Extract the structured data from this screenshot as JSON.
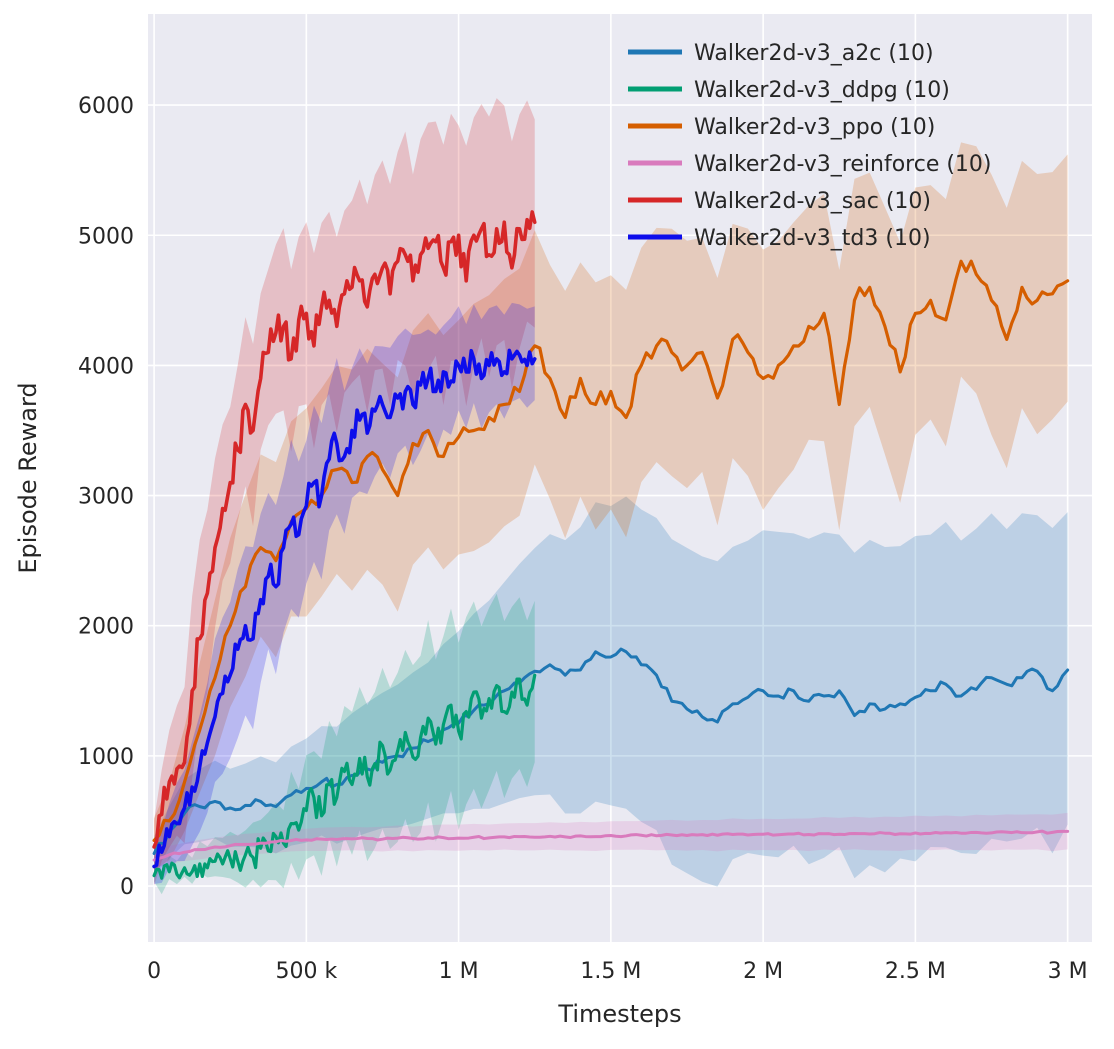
{
  "figure": {
    "type": "seaborn-line-figure",
    "background": "#ffffff"
  },
  "chart_data": {
    "type": "line",
    "title": "",
    "xlabel": "Timesteps",
    "ylabel": "Episode Reward",
    "grid": true,
    "legend_position": "upper right",
    "plot_background": "#eaeaf2",
    "grid_color": "#ffffff",
    "xlim": [
      -20000,
      3080000
    ],
    "ylim": [
      -430,
      6700
    ],
    "xticks": {
      "values": [
        0,
        500000,
        1000000,
        1500000,
        2000000,
        2500000,
        3000000
      ],
      "labels": [
        "0",
        "500 k",
        "1 M",
        "1.5 M",
        "2 M",
        "2.5 M",
        "3 M"
      ]
    },
    "yticks": {
      "values": [
        0,
        1000,
        2000,
        3000,
        4000,
        5000,
        6000
      ],
      "labels": [
        "0",
        "1000",
        "2000",
        "3000",
        "4000",
        "5000",
        "6000"
      ]
    },
    "band_opacity": 0.22,
    "series": [
      {
        "name": "Walker2d-v3_a2c (10)",
        "color": "#1f77b4",
        "x_start": 0,
        "x_step": 50000,
        "width": 3,
        "noise": 35,
        "values": [
          250,
          420,
          560,
          610,
          650,
          600,
          620,
          650,
          610,
          700,
          750,
          800,
          780,
          850,
          900,
          950,
          1000,
          1060,
          1110,
          1200,
          1250,
          1350,
          1400,
          1500,
          1560,
          1650,
          1700,
          1620,
          1660,
          1800,
          1760,
          1800,
          1700,
          1620,
          1420,
          1360,
          1300,
          1260,
          1400,
          1450,
          1500,
          1460,
          1500,
          1420,
          1460,
          1500,
          1310,
          1400,
          1360,
          1400,
          1450,
          1500,
          1550,
          1460,
          1510,
          1600,
          1550,
          1600,
          1650,
          1500,
          1660
        ],
        "band": [
          150,
          200,
          250,
          280,
          300,
          300,
          320,
          350,
          350,
          380,
          400,
          420,
          450,
          480,
          500,
          520,
          550,
          580,
          600,
          650,
          700,
          750,
          800,
          850,
          900,
          950,
          1000,
          1050,
          1100,
          1150,
          1150,
          1200,
          1200,
          1200,
          1250,
          1250,
          1250,
          1250,
          1200,
          1200,
          1250,
          1250,
          1200,
          1250,
          1250,
          1200,
          1250,
          1250,
          1250,
          1200,
          1250,
          1200,
          1250,
          1200,
          1250,
          1250,
          1200,
          1250,
          1200,
          1250,
          1200
        ]
      },
      {
        "name": "Walker2d-v3_ddpg (10)",
        "color": "#029e73",
        "x_start": 0,
        "x_step": 25000,
        "width": 3.2,
        "noise": 110,
        "values": [
          80,
          60,
          110,
          90,
          140,
          110,
          170,
          140,
          190,
          170,
          210,
          190,
          240,
          220,
          290,
          270,
          380,
          330,
          480,
          430,
          580,
          680,
          540,
          780,
          680,
          880,
          780,
          980,
          840,
          940,
          1080,
          890,
          1040,
          1180,
          990,
          1140,
          1290,
          1090,
          1240,
          1390,
          1190,
          1340,
          1490,
          1290,
          1440,
          1540,
          1340,
          1490,
          1590,
          1390,
          1620
        ],
        "band": [
          80,
          80,
          90,
          90,
          100,
          100,
          120,
          120,
          150,
          150,
          180,
          180,
          220,
          220,
          260,
          260,
          300,
          300,
          350,
          350,
          400,
          400,
          450,
          450,
          500,
          500,
          550,
          550,
          600,
          600,
          620,
          620,
          650,
          650,
          680,
          680,
          700,
          700,
          700,
          700,
          720,
          720,
          720,
          700,
          700,
          680,
          680,
          660,
          660,
          640,
          620
        ]
      },
      {
        "name": "Walker2d-v3_ppo (10)",
        "color": "#d55e00",
        "x_start": 0,
        "x_step": 50000,
        "width": 3.2,
        "noise": 70,
        "values": [
          350,
          500,
          800,
          1200,
          1600,
          2000,
          2300,
          2600,
          2500,
          2800,
          2900,
          3000,
          3200,
          3100,
          3300,
          3200,
          3000,
          3400,
          3500,
          3300,
          3450,
          3500,
          3600,
          3700,
          3800,
          4150,
          3900,
          3600,
          3900,
          3700,
          3800,
          3600,
          4000,
          4150,
          4100,
          4000,
          4100,
          3750,
          4200,
          4100,
          3900,
          4000,
          4150,
          4300,
          4400,
          3700,
          4500,
          4600,
          4300,
          3950,
          4400,
          4500,
          4350,
          4800,
          4700,
          4500,
          4200,
          4600,
          4500,
          4550,
          4650
        ],
        "band": [
          200,
          300,
          400,
          500,
          600,
          650,
          700,
          700,
          750,
          750,
          800,
          800,
          800,
          850,
          850,
          850,
          900,
          900,
          900,
          900,
          900,
          950,
          950,
          950,
          950,
          900,
          900,
          950,
          900,
          950,
          900,
          950,
          900,
          900,
          950,
          950,
          900,
          950,
          900,
          950,
          1000,
          950,
          950,
          900,
          950,
          1000,
          950,
          900,
          950,
          1000,
          950,
          900,
          950,
          900,
          950,
          1000,
          1000,
          950,
          1000,
          950,
          950
        ]
      },
      {
        "name": "Walker2d-v3_reinforce (10)",
        "color": "#d97bbd",
        "x_start": 0,
        "x_step": 50000,
        "width": 3,
        "noise": 8,
        "values": [
          200,
          240,
          260,
          280,
          300,
          310,
          320,
          330,
          340,
          350,
          355,
          360,
          358,
          362,
          365,
          360,
          368,
          365,
          370,
          372,
          368,
          375,
          370,
          378,
          380,
          375,
          382,
          378,
          385,
          380,
          388,
          385,
          390,
          386,
          392,
          388,
          395,
          390,
          396,
          392,
          398,
          394,
          400,
          396,
          402,
          398,
          404,
          400,
          406,
          402,
          408,
          404,
          410,
          406,
          412,
          408,
          414,
          410,
          416,
          412,
          420
        ],
        "band": [
          60,
          70,
          70,
          75,
          75,
          80,
          80,
          80,
          85,
          85,
          85,
          90,
          90,
          90,
          90,
          95,
          95,
          95,
          95,
          100,
          100,
          100,
          100,
          100,
          105,
          105,
          105,
          105,
          110,
          110,
          110,
          110,
          110,
          115,
          115,
          115,
          115,
          120,
          120,
          120,
          120,
          120,
          120,
          125,
          125,
          125,
          125,
          125,
          130,
          130,
          130,
          130,
          130,
          130,
          135,
          135,
          135,
          135,
          135,
          140,
          140
        ]
      },
      {
        "name": "Walker2d-v3_sac (10)",
        "color": "#d62728",
        "x_start": 0,
        "x_step": 25000,
        "width": 3.6,
        "noise": 140,
        "values": [
          300,
          550,
          800,
          900,
          950,
          1500,
          1900,
          2250,
          2600,
          2900,
          3100,
          3350,
          3700,
          3500,
          3900,
          4100,
          4250,
          4300,
          4050,
          4350,
          4400,
          4150,
          4450,
          4500,
          4300,
          4550,
          4600,
          4650,
          4450,
          4700,
          4750,
          4550,
          4800,
          4850,
          4650,
          4850,
          4900,
          4950,
          4750,
          4950,
          5000,
          4650,
          5000,
          5050,
          4850,
          5050,
          5100,
          4750,
          5050,
          5120,
          5100
        ],
        "band": [
          250,
          350,
          450,
          500,
          600,
          700,
          700,
          700,
          650,
          600,
          600,
          600,
          650,
          700,
          600,
          600,
          650,
          700,
          700,
          650,
          700,
          750,
          700,
          700,
          750,
          700,
          700,
          750,
          800,
          750,
          800,
          850,
          800,
          900,
          850,
          900,
          950,
          900,
          1000,
          950,
          900,
          1000,
          950,
          900,
          1000,
          950,
          900,
          950,
          900,
          850,
          800
        ]
      },
      {
        "name": "Walker2d-v3_td3 (10)",
        "color": "#0d0deb",
        "x_start": 0,
        "x_step": 25000,
        "width": 3.6,
        "noise": 120,
        "values": [
          150,
          260,
          380,
          480,
          600,
          760,
          920,
          1100,
          1300,
          1480,
          1620,
          1820,
          2000,
          1900,
          2200,
          2380,
          2300,
          2600,
          2780,
          2700,
          2920,
          3100,
          3000,
          3280,
          3400,
          3300,
          3500,
          3580,
          3480,
          3650,
          3700,
          3600,
          3750,
          3800,
          3700,
          3850,
          3900,
          3800,
          3950,
          3880,
          4000,
          3950,
          4050,
          3900,
          4000,
          4050,
          3950,
          4050,
          4080,
          4000,
          4050
        ],
        "band": [
          150,
          200,
          250,
          300,
          350,
          400,
          450,
          500,
          550,
          600,
          600,
          650,
          650,
          700,
          650,
          600,
          650,
          600,
          650,
          600,
          550,
          600,
          600,
          550,
          600,
          550,
          500,
          550,
          500,
          500,
          450,
          500,
          450,
          450,
          500,
          450,
          400,
          450,
          400,
          450,
          400,
          400,
          380,
          420,
          400,
          380,
          400,
          380,
          360,
          380,
          360
        ]
      }
    ]
  }
}
